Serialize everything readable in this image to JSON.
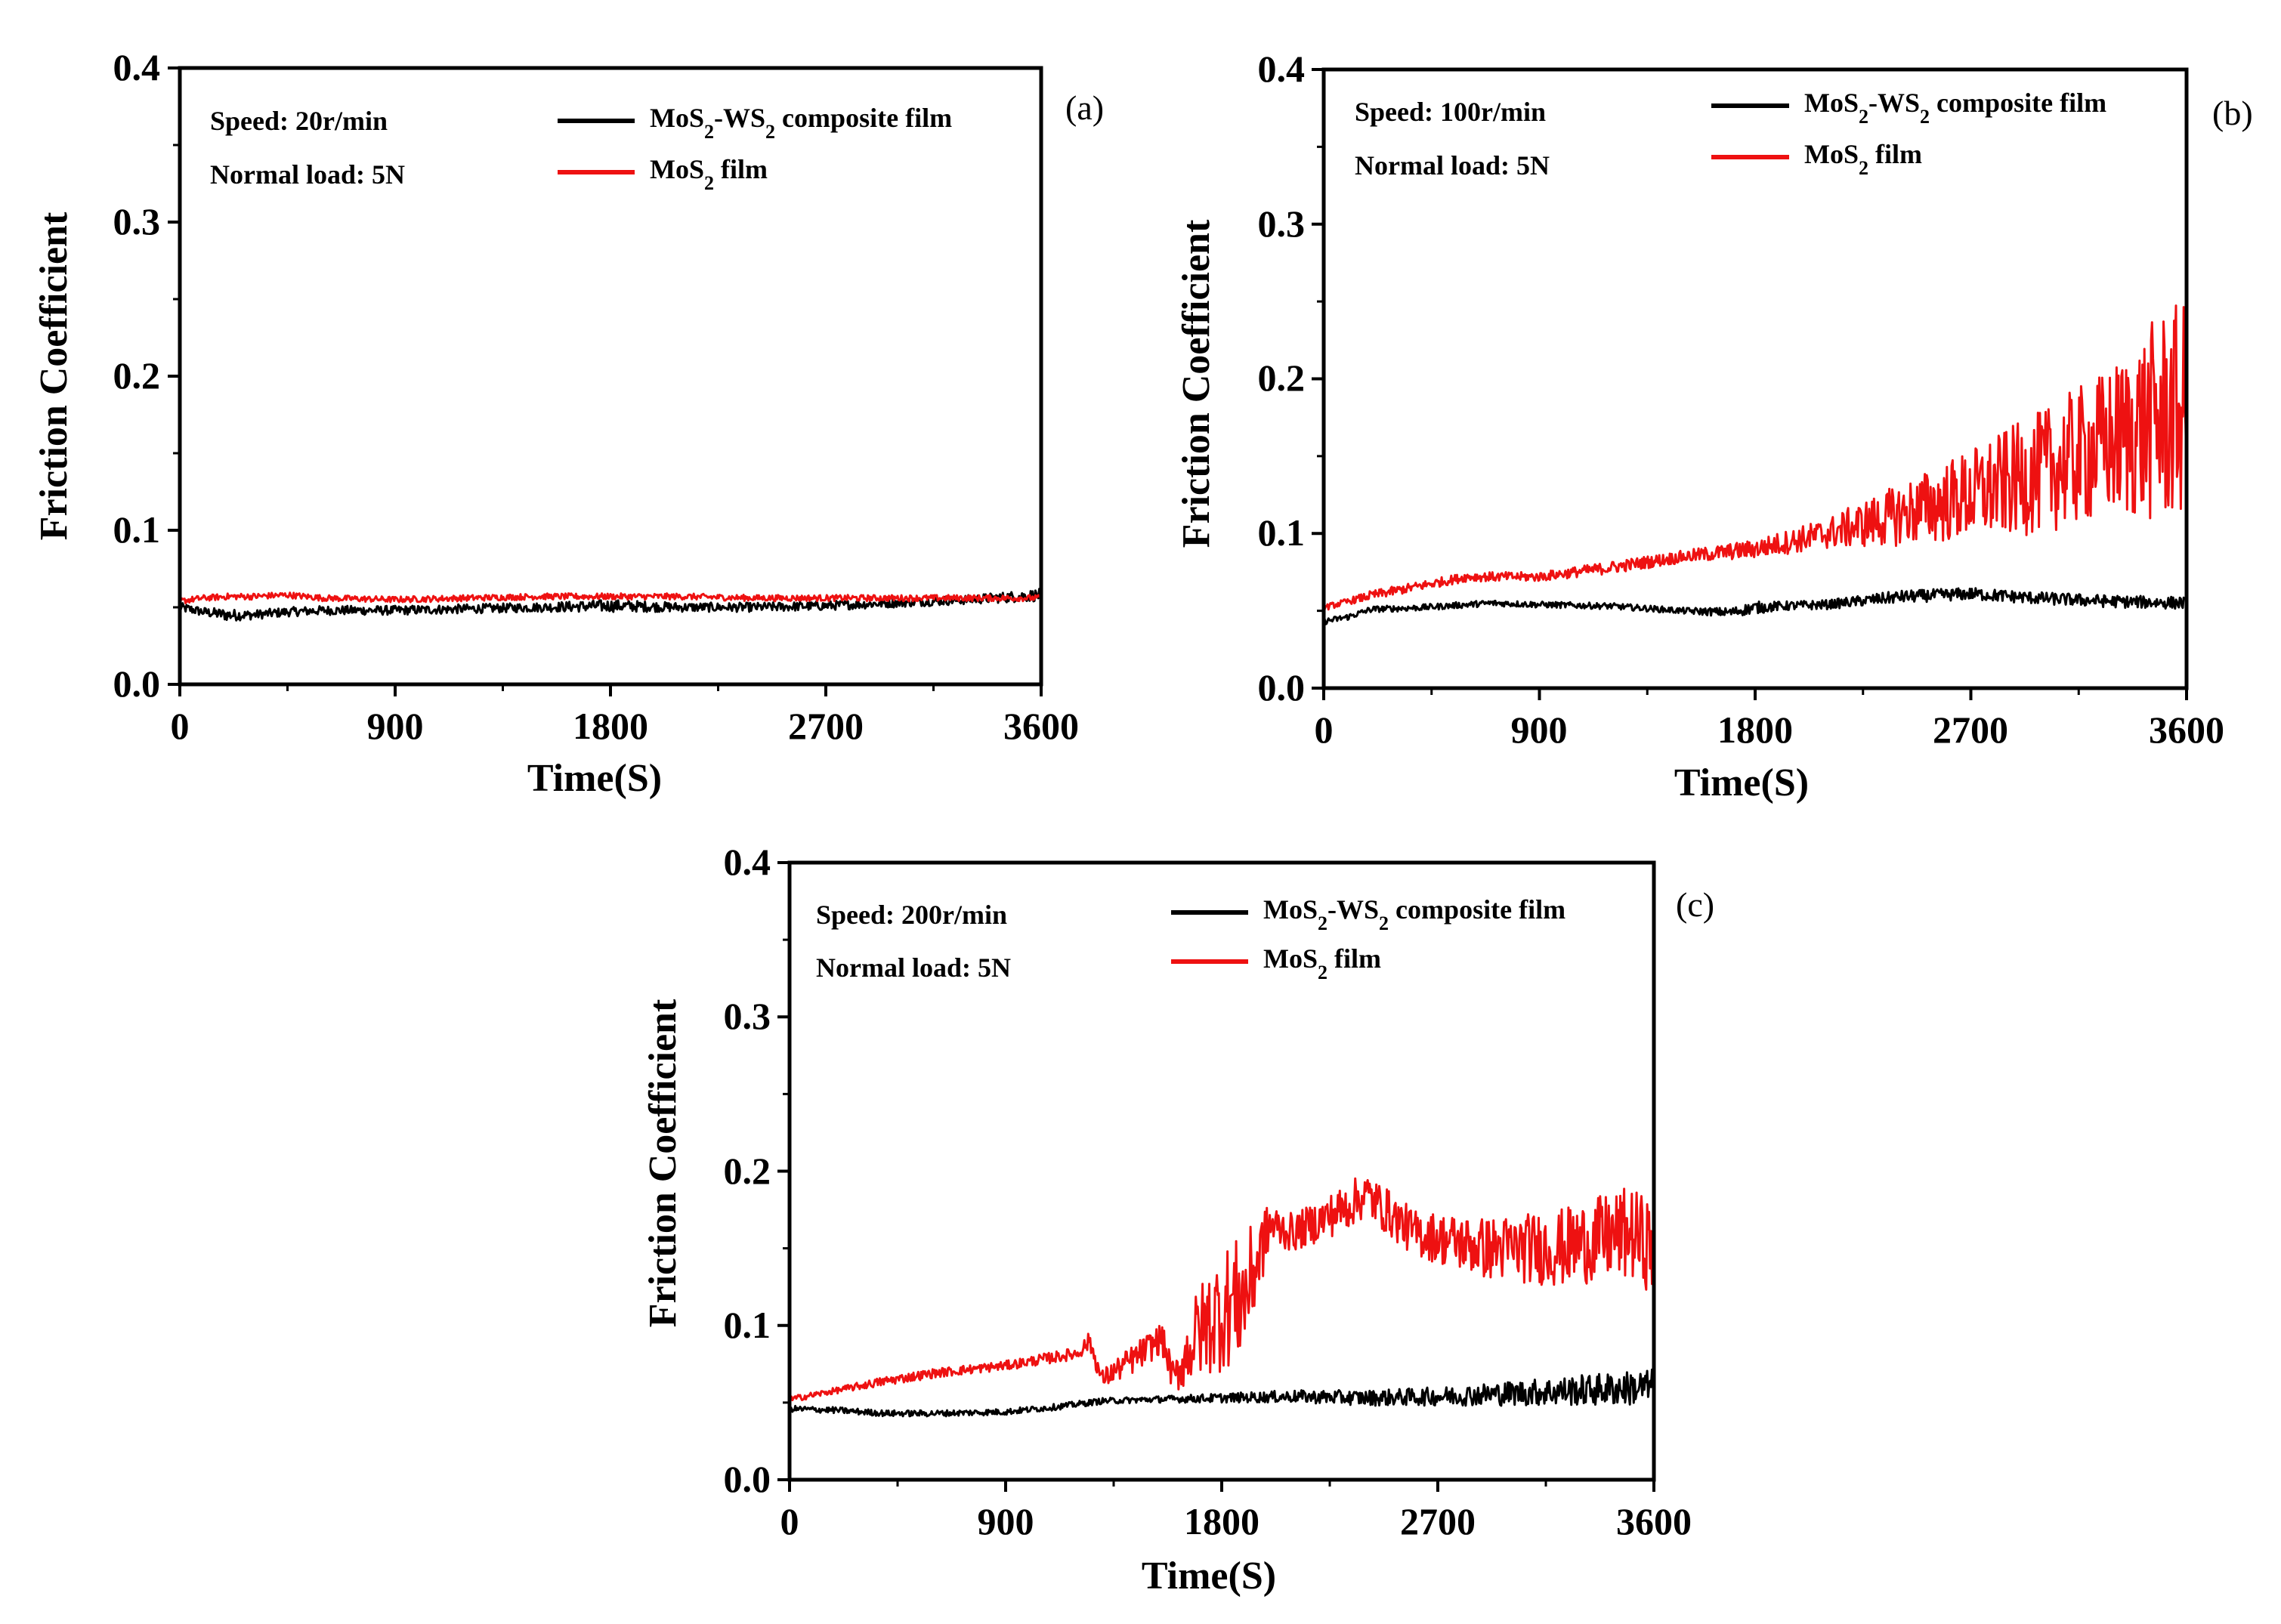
{
  "figure": {
    "panels": [
      {
        "id": "a",
        "panel_label": "(a)",
        "speed_text": "Speed:  20r/min",
        "load_text": "Normal load:  5N",
        "legend": [
          "MoS2-WS2 composite film",
          "MoS2 film"
        ],
        "xlabel": "Time(S)",
        "ylabel": "Friction Coefficient",
        "xticks": [
          "0",
          "900",
          "1800",
          "2700",
          "3600"
        ],
        "yticks": [
          "0.0",
          "0.1",
          "0.2",
          "0.3",
          "0.4"
        ]
      },
      {
        "id": "b",
        "panel_label": "(b)",
        "speed_text": "Speed:  100r/min",
        "load_text": "Normal load:  5N",
        "legend": [
          "MoS2-WS2 composite film",
          "MoS2 film"
        ],
        "xlabel": "Time(S)",
        "ylabel": "Friction Coefficient",
        "xticks": [
          "0",
          "900",
          "1800",
          "2700",
          "3600"
        ],
        "yticks": [
          "0.0",
          "0.1",
          "0.2",
          "0.3",
          "0.4"
        ]
      },
      {
        "id": "c",
        "panel_label": "(c)",
        "speed_text": "Speed:  200r/min",
        "load_text": "Normal load:  5N",
        "legend": [
          "MoS2-WS2 composite film",
          "MoS2 film"
        ],
        "xlabel": "Time(S)",
        "ylabel": "Friction Coefficient",
        "xticks": [
          "0",
          "900",
          "1800",
          "2700",
          "3600"
        ],
        "yticks": [
          "0.0",
          "0.1",
          "0.2",
          "0.3",
          "0.4"
        ]
      }
    ]
  },
  "chart_data": [
    {
      "type": "line",
      "title": "(a)",
      "annotations": [
        "Speed: 20r/min",
        "Normal load: 5N"
      ],
      "xlabel": "Time(S)",
      "ylabel": "Friction Coefficient",
      "xlim": [
        0,
        3600
      ],
      "ylim": [
        0.0,
        0.4
      ],
      "colors": {
        "MoS2-WS2 composite film": "#000000",
        "MoS2 film": "#ee1111"
      },
      "series": [
        {
          "name": "MoS2-WS2 composite film",
          "x": [
            0,
            100,
            200,
            300,
            450,
            600,
            900,
            1200,
            1500,
            1800,
            2100,
            2400,
            2700,
            3000,
            3300,
            3600
          ],
          "y": [
            0.05,
            0.047,
            0.045,
            0.045,
            0.047,
            0.048,
            0.048,
            0.049,
            0.05,
            0.051,
            0.05,
            0.05,
            0.051,
            0.053,
            0.055,
            0.058
          ],
          "noise": [
            0.003,
            0.003,
            0.004,
            0.003,
            0.003,
            0.003,
            0.003,
            0.003,
            0.003,
            0.004,
            0.003,
            0.003,
            0.003,
            0.003,
            0.003,
            0.004
          ]
        },
        {
          "name": "MoS2 film",
          "x": [
            0,
            100,
            200,
            300,
            450,
            600,
            900,
            1200,
            1500,
            1800,
            2100,
            2400,
            2700,
            3000,
            3300,
            3600
          ],
          "y": [
            0.054,
            0.056,
            0.057,
            0.057,
            0.058,
            0.056,
            0.055,
            0.056,
            0.057,
            0.057,
            0.057,
            0.056,
            0.056,
            0.056,
            0.056,
            0.056
          ],
          "noise": [
            0.002,
            0.002,
            0.002,
            0.002,
            0.002,
            0.002,
            0.002,
            0.002,
            0.002,
            0.002,
            0.002,
            0.002,
            0.002,
            0.002,
            0.002,
            0.002
          ]
        }
      ]
    },
    {
      "type": "line",
      "title": "(b)",
      "annotations": [
        "Speed: 100r/min",
        "Normal load: 5N"
      ],
      "xlabel": "Time(S)",
      "ylabel": "Friction Coefficient",
      "xlim": [
        0,
        3600
      ],
      "ylim": [
        0.0,
        0.4
      ],
      "colors": {
        "MoS2-WS2 composite film": "#000000",
        "MoS2 film": "#ee1111"
      },
      "series": [
        {
          "name": "MoS2-WS2 composite film",
          "x": [
            0,
            100,
            200,
            400,
            700,
            900,
            1200,
            1500,
            1700,
            1800,
            1900,
            2100,
            2400,
            2700,
            3000,
            3300,
            3600
          ],
          "y": [
            0.043,
            0.046,
            0.051,
            0.052,
            0.055,
            0.054,
            0.053,
            0.05,
            0.049,
            0.052,
            0.053,
            0.054,
            0.059,
            0.061,
            0.058,
            0.056,
            0.055
          ],
          "noise": [
            0.002,
            0.002,
            0.002,
            0.002,
            0.002,
            0.002,
            0.002,
            0.002,
            0.003,
            0.004,
            0.003,
            0.003,
            0.004,
            0.004,
            0.004,
            0.004,
            0.004
          ]
        },
        {
          "name": "MoS2 film",
          "x": [
            0,
            100,
            200,
            400,
            600,
            900,
            1200,
            1500,
            1800,
            2100,
            2400,
            2700,
            3000,
            3300,
            3500,
            3600
          ],
          "y": [
            0.052,
            0.056,
            0.06,
            0.066,
            0.072,
            0.072,
            0.078,
            0.085,
            0.09,
            0.1,
            0.112,
            0.125,
            0.14,
            0.16,
            0.175,
            0.18
          ],
          "noise": [
            0.002,
            0.002,
            0.003,
            0.003,
            0.003,
            0.003,
            0.004,
            0.004,
            0.006,
            0.01,
            0.02,
            0.03,
            0.04,
            0.05,
            0.07,
            0.07
          ]
        }
      ]
    },
    {
      "type": "line",
      "title": "(c)",
      "annotations": [
        "Speed: 200r/min",
        "Normal load: 5N"
      ],
      "xlabel": "Time(S)",
      "ylabel": "Friction Coefficient",
      "xlim": [
        0,
        3600
      ],
      "ylim": [
        0.0,
        0.4
      ],
      "colors": {
        "MoS2-WS2 composite film": "#000000",
        "MoS2 film": "#ee1111"
      },
      "series": [
        {
          "name": "MoS2-WS2 composite film",
          "x": [
            0,
            200,
            400,
            600,
            900,
            1100,
            1300,
            1500,
            1800,
            2100,
            2400,
            2700,
            3000,
            3300,
            3600
          ],
          "y": [
            0.046,
            0.045,
            0.043,
            0.043,
            0.044,
            0.047,
            0.051,
            0.052,
            0.053,
            0.054,
            0.053,
            0.054,
            0.056,
            0.058,
            0.06
          ],
          "noise": [
            0.002,
            0.002,
            0.002,
            0.002,
            0.002,
            0.002,
            0.002,
            0.002,
            0.003,
            0.004,
            0.005,
            0.006,
            0.008,
            0.01,
            0.012
          ]
        },
        {
          "name": "MoS2 film",
          "x": [
            0,
            200,
            400,
            600,
            900,
            1200,
            1250,
            1300,
            1450,
            1550,
            1600,
            1700,
            1800,
            1900,
            2000,
            2100,
            2300,
            2400,
            2600,
            2900,
            3200,
            3500,
            3600
          ],
          "y": [
            0.052,
            0.058,
            0.064,
            0.069,
            0.074,
            0.082,
            0.09,
            0.065,
            0.08,
            0.092,
            0.065,
            0.095,
            0.11,
            0.12,
            0.165,
            0.16,
            0.175,
            0.185,
            0.16,
            0.15,
            0.15,
            0.16,
            0.15
          ],
          "noise": [
            0.002,
            0.002,
            0.003,
            0.003,
            0.003,
            0.004,
            0.006,
            0.006,
            0.01,
            0.01,
            0.01,
            0.03,
            0.04,
            0.04,
            0.015,
            0.012,
            0.015,
            0.015,
            0.015,
            0.02,
            0.025,
            0.03,
            0.03
          ]
        }
      ]
    }
  ]
}
